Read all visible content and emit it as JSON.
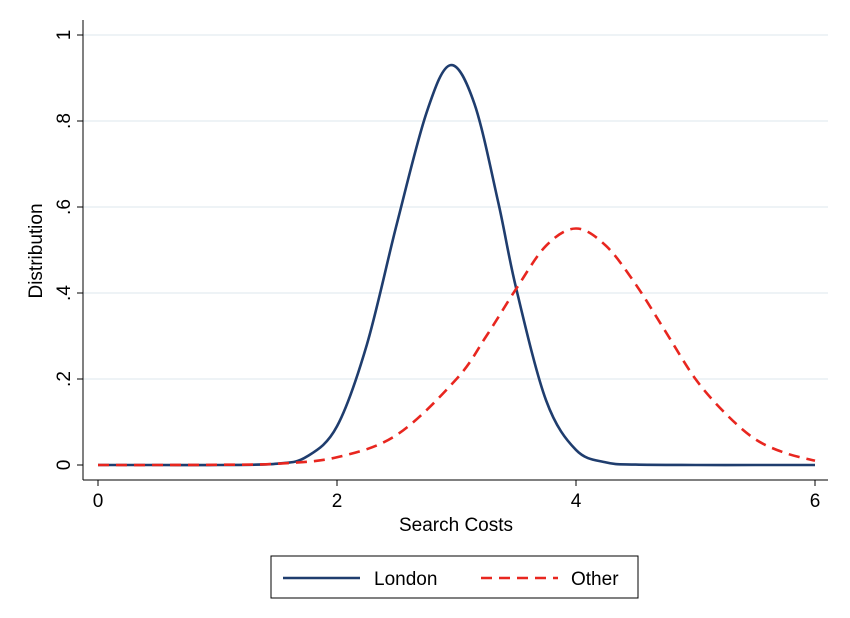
{
  "chart_data": {
    "type": "line",
    "xlabel": "Search Costs",
    "ylabel": "Distribution",
    "xlim": [
      0,
      6
    ],
    "ylim": [
      0,
      1
    ],
    "xticks": [
      0,
      2,
      4,
      6
    ],
    "xtick_labels": [
      "0",
      "2",
      "4",
      "6"
    ],
    "yticks": [
      0,
      0.2,
      0.4,
      0.6,
      0.8,
      1
    ],
    "ytick_labels": [
      "0",
      ".2",
      ".4",
      ".6",
      ".8",
      "1"
    ],
    "grid": true,
    "legend_position": "bottom",
    "series": [
      {
        "name": "London",
        "color": "#1f3d6e",
        "style": "solid",
        "x": [
          0,
          0.5,
          1.0,
          1.5,
          1.75,
          2.0,
          2.25,
          2.5,
          2.75,
          2.95,
          3.15,
          3.35,
          3.5,
          3.75,
          4.0,
          4.25,
          4.5,
          5.0,
          5.5,
          6.0
        ],
        "y": [
          0,
          0,
          0,
          0.003,
          0.02,
          0.09,
          0.28,
          0.56,
          0.82,
          0.93,
          0.84,
          0.61,
          0.41,
          0.15,
          0.035,
          0.006,
          0.001,
          0,
          0,
          0
        ]
      },
      {
        "name": "Other",
        "color": "#e8261f",
        "style": "dashed",
        "x": [
          0,
          0.5,
          1.0,
          1.5,
          2.0,
          2.5,
          3.0,
          3.25,
          3.5,
          3.75,
          4.0,
          4.25,
          4.5,
          4.75,
          5.0,
          5.25,
          5.5,
          5.75,
          6.0
        ],
        "y": [
          0,
          0,
          0.0005,
          0.003,
          0.018,
          0.07,
          0.2,
          0.3,
          0.41,
          0.51,
          0.55,
          0.51,
          0.42,
          0.31,
          0.2,
          0.12,
          0.06,
          0.028,
          0.01
        ]
      }
    ]
  }
}
